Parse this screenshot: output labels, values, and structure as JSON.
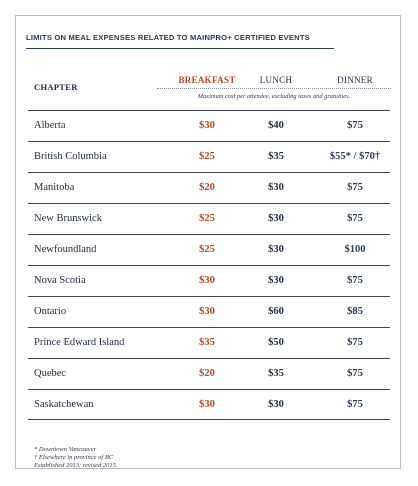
{
  "title": "LIMITS ON MEAL EXPENSES RELATED TO MAINPRO+ CERTIFIED EVENTS",
  "headers": {
    "chapter": "CHAPTER",
    "breakfast": "BREAKFAST",
    "lunch": "LUNCH",
    "dinner": "DINNER"
  },
  "note": "Maximum cost per attendee, excluding taxes and gratuities.",
  "rows": [
    {
      "chapter": "Alberta",
      "breakfast": "$30",
      "lunch": "$40",
      "dinner": "$75"
    },
    {
      "chapter": "British Columbia",
      "breakfast": "$25",
      "lunch": "$35",
      "dinner": "$55* / $70†"
    },
    {
      "chapter": "Manitoba",
      "breakfast": "$20",
      "lunch": "$30",
      "dinner": "$75"
    },
    {
      "chapter": "New Brunswick",
      "breakfast": "$25",
      "lunch": "$30",
      "dinner": "$75"
    },
    {
      "chapter": "Newfoundland",
      "breakfast": "$25",
      "lunch": "$30",
      "dinner": "$100"
    },
    {
      "chapter": "Nova Scotia",
      "breakfast": "$30",
      "lunch": "$30",
      "dinner": "$75"
    },
    {
      "chapter": "Ontario",
      "breakfast": "$30",
      "lunch": "$60",
      "dinner": "$85"
    },
    {
      "chapter": "Prince Edward Island",
      "breakfast": "$35",
      "lunch": "$50",
      "dinner": "$75"
    },
    {
      "chapter": "Quebec",
      "breakfast": "$20",
      "lunch": "$35",
      "dinner": "$75"
    },
    {
      "chapter": "Saskatchewan",
      "breakfast": "$30",
      "lunch": "$30",
      "dinner": "$75"
    }
  ],
  "footnotes": [
    "* Downtown Vancouver",
    "† Elsewhere in province of BC",
    "Established 2013; revised 2015."
  ],
  "colors": {
    "breakfast_accent": "#c0441d",
    "text_navy": "#1f2a44"
  }
}
